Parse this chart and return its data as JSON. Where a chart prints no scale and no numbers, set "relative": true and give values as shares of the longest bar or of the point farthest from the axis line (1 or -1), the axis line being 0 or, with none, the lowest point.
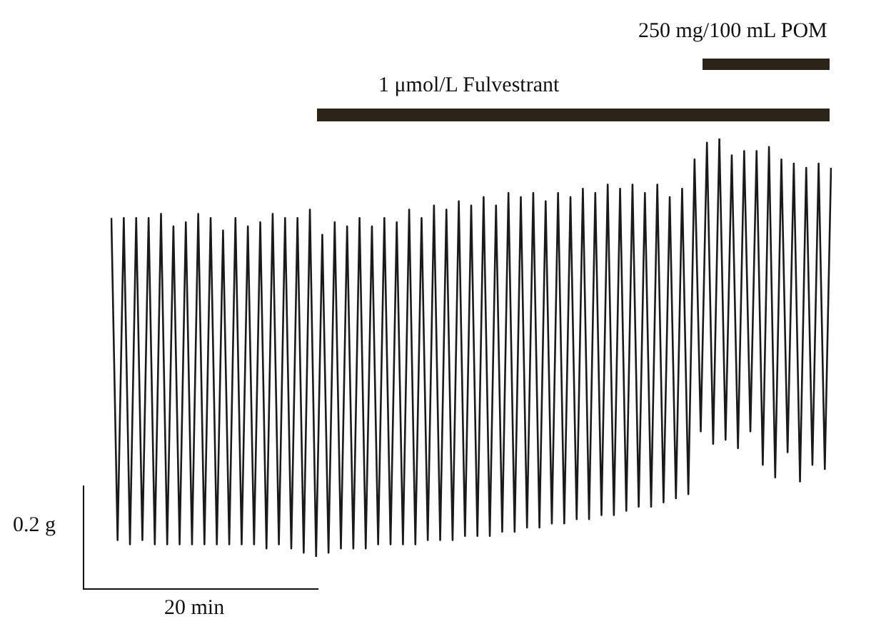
{
  "chart_data": {
    "type": "line",
    "relative": true,
    "color": "#1a1a1a",
    "marker": "none",
    "line_style": "solid",
    "legend": false,
    "annotations": [
      "1 μmol/L Fulvestrant",
      "250 mg/100 mL POM",
      "0.2 g",
      "20 min"
    ],
    "categories": [
      null,
      null,
      null,
      null,
      null,
      null,
      null,
      null,
      null,
      null,
      null,
      null,
      null,
      null,
      null,
      null,
      null,
      null,
      null,
      null,
      null,
      null,
      null,
      null,
      null,
      null,
      null,
      null,
      null,
      null,
      null,
      null,
      null,
      null,
      null,
      null,
      null,
      null,
      null,
      null,
      null,
      null,
      null,
      null,
      null,
      null,
      null,
      null,
      null,
      null,
      null,
      null,
      null,
      null,
      null,
      null,
      null,
      null,
      null,
      null,
      null,
      null,
      null,
      null,
      null,
      null,
      null,
      null,
      null,
      null,
      null,
      null,
      null,
      null,
      null,
      null,
      null,
      null,
      null,
      null,
      null,
      null,
      null,
      null,
      null,
      null,
      null,
      null,
      null,
      null,
      null,
      null,
      null,
      null,
      null,
      null,
      null,
      null,
      null,
      null,
      null,
      null,
      null,
      null,
      null,
      null,
      null,
      null,
      null,
      null,
      null,
      null,
      null,
      null,
      null,
      null,
      null
    ],
    "values": [
      0.81,
      0.04,
      0.81,
      0.03,
      0.81,
      0.04,
      0.81,
      0.03,
      0.82,
      0.03,
      0.79,
      0.03,
      0.8,
      0.03,
      0.82,
      0.03,
      0.81,
      0.03,
      0.78,
      0.03,
      0.81,
      0.03,
      0.79,
      0.03,
      0.8,
      0.02,
      0.82,
      0.03,
      0.81,
      0.02,
      0.81,
      0.01,
      0.83,
      0,
      0.77,
      0.01,
      0.8,
      0.02,
      0.79,
      0.02,
      0.81,
      0.02,
      0.79,
      0.03,
      0.81,
      0.03,
      0.8,
      0.03,
      0.83,
      0.03,
      0.81,
      0.04,
      0.84,
      0.04,
      0.83,
      0.04,
      0.85,
      0.05,
      0.84,
      0.05,
      0.86,
      0.05,
      0.84,
      0.06,
      0.87,
      0.06,
      0.86,
      0.07,
      0.87,
      0.07,
      0.85,
      0.08,
      0.87,
      0.08,
      0.86,
      0.09,
      0.88,
      0.09,
      0.87,
      0.1,
      0.89,
      0.1,
      0.88,
      0.11,
      0.89,
      0.12,
      0.87,
      0.12,
      0.89,
      0.13,
      0.86,
      0.14,
      0.88,
      0.15,
      0.95,
      0.3,
      0.99,
      0.27,
      1,
      0.28,
      0.96,
      0.26,
      0.97,
      0.3,
      0.97,
      0.22,
      0.98,
      0.19,
      0.95,
      0.25,
      0.94,
      0.18,
      0.93,
      0.22,
      0.94,
      0.21,
      0.93
    ]
  }
}
